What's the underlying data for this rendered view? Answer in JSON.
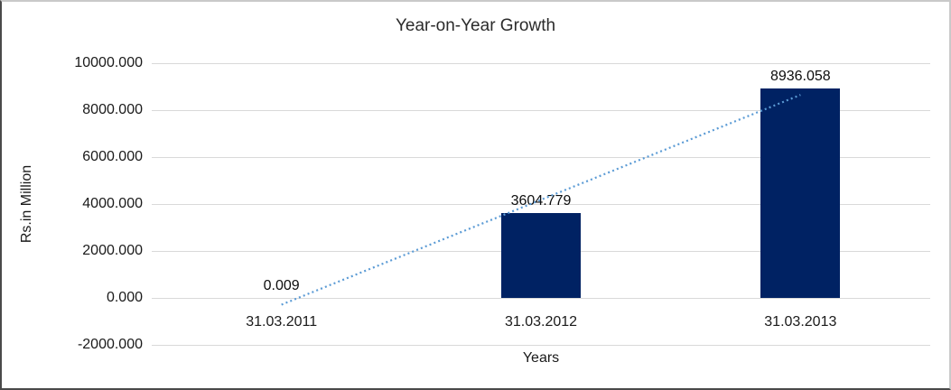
{
  "chart_data": {
    "type": "bar",
    "title": "Year-on-Year Growth",
    "xlabel": "Years",
    "ylabel": "Rs.in Million",
    "categories": [
      "31.03.2011",
      "31.03.2012",
      "31.03.2013"
    ],
    "values": [
      0.009,
      3604.779,
      8936.058
    ],
    "data_labels": [
      "0.009",
      "3604.779",
      "8936.058"
    ],
    "ylim": [
      -2000,
      10000
    ],
    "yticks": [
      10000,
      8000,
      6000,
      4000,
      2000,
      0,
      -2000
    ],
    "ytick_labels": [
      "10000.000",
      "8000.000",
      "6000.000",
      "4000.000",
      "2000.000",
      "0.000",
      "-2000.000"
    ],
    "grid": true,
    "legend_position": "none",
    "bar_color": "#002263",
    "gridline_color": "#d9d9d9",
    "trendline": {
      "type": "linear",
      "style": "dotted",
      "color": "#5b9bd5"
    }
  }
}
